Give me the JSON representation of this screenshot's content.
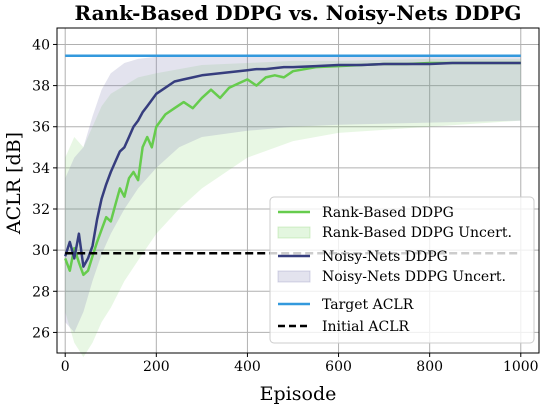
{
  "chart_data": {
    "type": "line",
    "title": "Rank-Based DDPG vs. Noisy-Nets DDPG",
    "xlabel": "Episode",
    "ylabel": "ACLR [dB]",
    "xlim": [
      -18,
      1040
    ],
    "ylim": [
      25,
      40.8
    ],
    "xticks": [
      0,
      200,
      400,
      600,
      800,
      1000
    ],
    "yticks": [
      26,
      28,
      30,
      32,
      34,
      36,
      38,
      40
    ],
    "grid": true,
    "legend_position": "lower-right",
    "series": [
      {
        "name": "Rank-Based DDPG",
        "kind": "line",
        "color": "#66cc4d",
        "x": [
          0,
          10,
          20,
          30,
          40,
          50,
          60,
          70,
          80,
          90,
          100,
          110,
          120,
          130,
          140,
          150,
          160,
          170,
          180,
          190,
          200,
          220,
          240,
          260,
          280,
          300,
          320,
          340,
          360,
          380,
          400,
          420,
          440,
          460,
          480,
          500,
          550,
          600,
          650,
          700,
          750,
          800,
          850,
          900,
          950,
          1000
        ],
        "y": [
          29.6,
          29.0,
          30.1,
          29.4,
          28.8,
          29.0,
          29.7,
          30.4,
          31.0,
          31.6,
          31.4,
          32.2,
          33.0,
          32.6,
          33.5,
          33.8,
          33.4,
          35.0,
          35.5,
          35.0,
          36.0,
          36.6,
          36.9,
          37.2,
          36.9,
          37.4,
          37.8,
          37.4,
          37.9,
          38.1,
          38.3,
          38.0,
          38.4,
          38.5,
          38.4,
          38.7,
          38.9,
          38.95,
          39.0,
          39.05,
          39.05,
          39.1,
          39.1,
          39.1,
          39.1,
          39.1
        ]
      },
      {
        "name": "Rank-Based DDPG Uncert.",
        "kind": "band",
        "color": "#66cc4d",
        "x": [
          0,
          20,
          40,
          60,
          80,
          100,
          130,
          160,
          200,
          250,
          300,
          400,
          500,
          600,
          800,
          1000
        ],
        "upper": [
          34.5,
          35.5,
          35.0,
          36.0,
          37.0,
          37.6,
          38.0,
          38.4,
          38.6,
          38.8,
          39.0,
          39.1,
          39.2,
          39.2,
          39.3,
          39.3
        ],
        "lower": [
          27.0,
          25.5,
          24.8,
          25.5,
          26.5,
          27.2,
          28.5,
          29.5,
          30.8,
          32.0,
          33.0,
          34.5,
          35.3,
          35.7,
          36.0,
          36.3
        ]
      },
      {
        "name": "Noisy-Nets DDPG",
        "kind": "line",
        "color": "#363d7e",
        "x": [
          0,
          10,
          20,
          30,
          40,
          50,
          60,
          70,
          80,
          90,
          100,
          110,
          120,
          130,
          140,
          150,
          160,
          170,
          180,
          190,
          200,
          220,
          240,
          260,
          280,
          300,
          320,
          340,
          360,
          380,
          400,
          420,
          440,
          460,
          480,
          500,
          550,
          600,
          650,
          700,
          750,
          800,
          850,
          900,
          950,
          1000
        ],
        "y": [
          29.7,
          30.4,
          29.6,
          30.8,
          29.2,
          29.6,
          30.2,
          31.5,
          32.5,
          33.2,
          33.8,
          34.3,
          34.8,
          35.0,
          35.5,
          36.0,
          36.3,
          36.7,
          37.0,
          37.3,
          37.6,
          37.9,
          38.2,
          38.3,
          38.4,
          38.5,
          38.55,
          38.6,
          38.65,
          38.7,
          38.75,
          38.8,
          38.8,
          38.85,
          38.9,
          38.9,
          38.95,
          39.0,
          39.0,
          39.05,
          39.05,
          39.05,
          39.1,
          39.1,
          39.1,
          39.1
        ]
      },
      {
        "name": "Noisy-Nets DDPG Uncert.",
        "kind": "band",
        "color": "#7f7fb3",
        "x": [
          0,
          20,
          40,
          60,
          80,
          100,
          130,
          160,
          200,
          250,
          300,
          400,
          500,
          600,
          800,
          1000
        ],
        "upper": [
          33.5,
          34.5,
          35.0,
          36.5,
          37.8,
          38.6,
          39.1,
          39.3,
          39.4,
          39.4,
          39.4,
          39.4,
          39.4,
          39.4,
          39.4,
          39.4
        ],
        "lower": [
          26.5,
          26.0,
          27.0,
          28.5,
          29.8,
          30.8,
          32.0,
          33.0,
          34.0,
          35.0,
          35.5,
          35.8,
          36.0,
          36.1,
          36.2,
          36.3
        ]
      },
      {
        "name": "Target ACLR",
        "kind": "hline",
        "color": "#3399dd",
        "y": 39.45
      },
      {
        "name": "Initial ACLR",
        "kind": "hline-dashed",
        "color": "#000000",
        "y": 29.85
      }
    ]
  }
}
